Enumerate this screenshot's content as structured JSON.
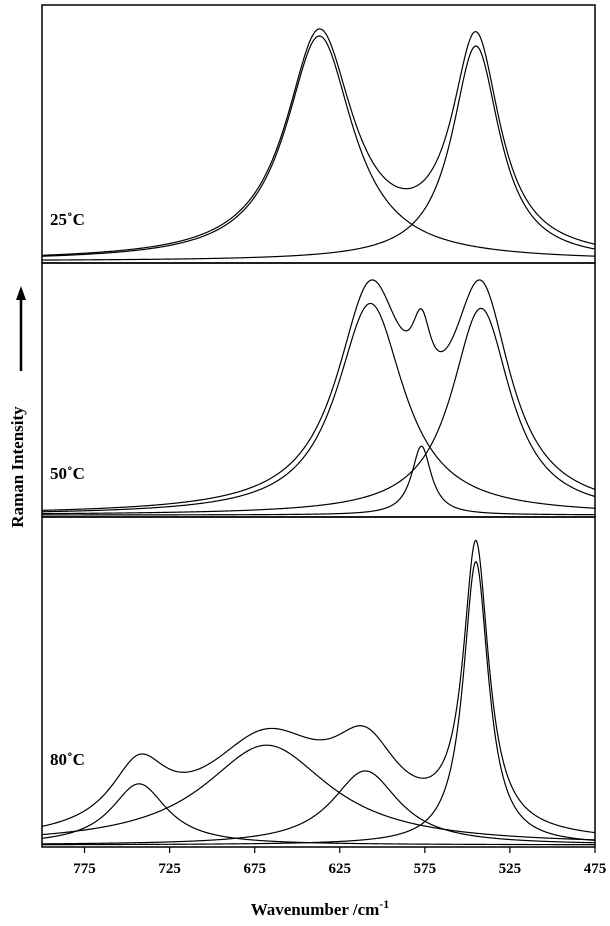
{
  "chart_data": {
    "type": "line",
    "xlabel": "Wavenumber /cm",
    "xlabel_sup": "-1",
    "ylabel": "Raman Intensity",
    "xlim": [
      800,
      475
    ],
    "x_reversed": true,
    "xticks": [
      775,
      725,
      675,
      625,
      575,
      525,
      475
    ],
    "grid": false,
    "panels": [
      {
        "label": "25˚C",
        "peaks": [
          {
            "center": 637,
            "amplitude": 0.9,
            "width": 24
          },
          {
            "center": 545,
            "amplitude": 0.86,
            "width": 17
          }
        ]
      },
      {
        "label": "50˚C",
        "peaks": [
          {
            "center": 607,
            "amplitude": 0.86,
            "width": 24
          },
          {
            "center": 577,
            "amplitude": 0.28,
            "width": 7
          },
          {
            "center": 542,
            "amplitude": 0.84,
            "width": 21
          }
        ]
      },
      {
        "label": "80˚C",
        "peaks": [
          {
            "center": 743,
            "amplitude": 0.19,
            "width": 20
          },
          {
            "center": 668,
            "amplitude": 0.31,
            "width": 45
          },
          {
            "center": 610,
            "amplitude": 0.23,
            "width": 24
          },
          {
            "center": 545,
            "amplitude": 0.88,
            "width": 9
          }
        ]
      }
    ]
  }
}
